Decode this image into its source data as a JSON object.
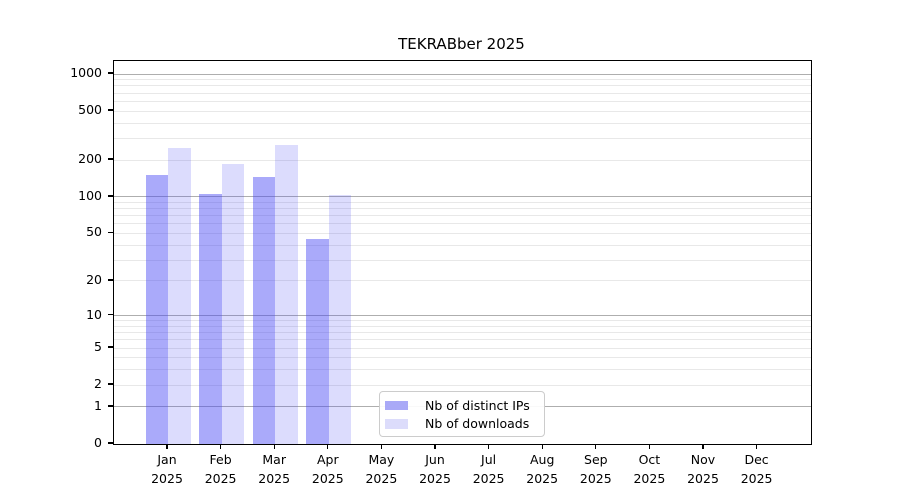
{
  "chart_data": {
    "type": "bar",
    "title": "TEKRABber 2025",
    "x_year": "2025",
    "categories": [
      "Jan",
      "Feb",
      "Mar",
      "Apr",
      "May",
      "Jun",
      "Jul",
      "Aug",
      "Sep",
      "Oct",
      "Nov",
      "Dec"
    ],
    "series": [
      {
        "name": "Nb of distinct IPs",
        "color": "#a9a9f7",
        "fill": "rgba(70,70,245,0.46)",
        "values": [
          150,
          106,
          145,
          45,
          0,
          0,
          0,
          0,
          0,
          0,
          0,
          0
        ]
      },
      {
        "name": "Nb of downloads",
        "color": "#dcdcfb",
        "fill": "rgba(70,70,245,0.19)",
        "values": [
          250,
          187,
          266,
          103,
          0,
          0,
          0,
          0,
          0,
          0,
          0,
          0
        ]
      }
    ],
    "y_ticks": [
      0,
      1,
      2,
      5,
      10,
      20,
      50,
      100,
      200,
      500,
      1000
    ],
    "y_scale": "log1p",
    "ylim": [
      0,
      1264
    ],
    "grid": {
      "major": [
        1,
        10,
        100,
        1000
      ],
      "minor": [
        2,
        3,
        4,
        5,
        6,
        7,
        8,
        9,
        20,
        30,
        40,
        50,
        60,
        70,
        80,
        90,
        200,
        300,
        400,
        500,
        600,
        700,
        800,
        900
      ]
    },
    "legend": {
      "position": "lower-center-inside"
    },
    "colors": {
      "grid_major": "#aeaeae",
      "grid_minor": "#e8e8e8",
      "axis": "#000000",
      "background": "#ffffff"
    }
  }
}
